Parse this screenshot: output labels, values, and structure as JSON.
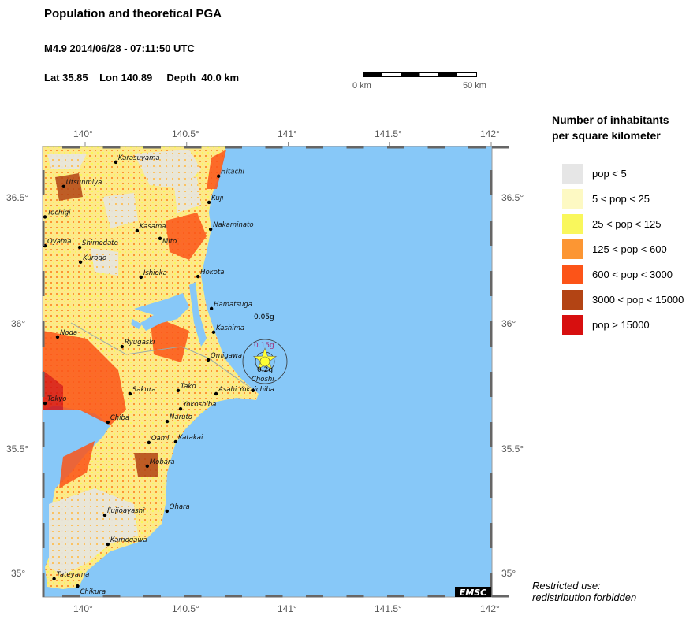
{
  "header": {
    "title": "Population and theoretical PGA",
    "event": "M4.9  2014/06/28 - 07:11:50 UTC",
    "location": "Lat 35.85    Lon 140.89     Depth  40.0 km"
  },
  "scale_bar": {
    "start_label": "0 km",
    "end_label": "50 km"
  },
  "map": {
    "lon_ticks": [
      "140°",
      "140.5°",
      "141°",
      "141.5°",
      "142°"
    ],
    "lat_ticks": [
      "36.5°",
      "36°",
      "35.5°",
      "35°"
    ],
    "colors": {
      "sea": "#87c8f8",
      "frame": "#666666"
    },
    "epicenter": {
      "lon": 140.89,
      "lat": 35.85,
      "icon": "star-icon",
      "color": "#ffff33"
    },
    "pga_labels": [
      "0.05g",
      "0.15g",
      "0.2g"
    ],
    "cities": [
      {
        "name": "Karasuyama",
        "lon": 140.151,
        "lat": 36.643
      },
      {
        "name": "Utsunmiya",
        "lon": 139.894,
        "lat": 36.546
      },
      {
        "name": "Hitachi",
        "lon": 140.657,
        "lat": 36.587
      },
      {
        "name": "Kuji",
        "lon": 140.61,
        "lat": 36.483
      },
      {
        "name": "Tochigi",
        "lon": 139.802,
        "lat": 36.425
      },
      {
        "name": "Nakaminato",
        "lon": 140.618,
        "lat": 36.376
      },
      {
        "name": "Kasama",
        "lon": 140.256,
        "lat": 36.37
      },
      {
        "name": "Mito",
        "lon": 140.369,
        "lat": 36.339
      },
      {
        "name": "Oyama",
        "lon": 139.802,
        "lat": 36.31
      },
      {
        "name": "Shimodate",
        "lon": 139.973,
        "lat": 36.304
      },
      {
        "name": "Kurogo",
        "lon": 139.977,
        "lat": 36.245
      },
      {
        "name": "Ishioka",
        "lon": 140.275,
        "lat": 36.185
      },
      {
        "name": "Hokota",
        "lon": 140.556,
        "lat": 36.188
      },
      {
        "name": "Hamatsuga",
        "lon": 140.622,
        "lat": 36.06
      },
      {
        "name": "Kashima",
        "lon": 140.633,
        "lat": 35.966
      },
      {
        "name": "Noda",
        "lon": 139.864,
        "lat": 35.947
      },
      {
        "name": "Ryugaski",
        "lon": 140.182,
        "lat": 35.909
      },
      {
        "name": "Omigawa",
        "lon": 140.606,
        "lat": 35.856
      },
      {
        "name": "Sakura",
        "lon": 140.221,
        "lat": 35.721
      },
      {
        "name": "Tako",
        "lon": 140.458,
        "lat": 35.734
      },
      {
        "name": "Asahi Yokaichiba",
        "lon": 140.645,
        "lat": 35.721
      },
      {
        "name": "Choshi",
        "lon": 140.827,
        "lat": 35.734
      },
      {
        "name": "Tokyo",
        "lon": 139.802,
        "lat": 35.683
      },
      {
        "name": "Yokoshiba",
        "lon": 140.47,
        "lat": 35.661
      },
      {
        "name": "Chiba",
        "lon": 140.112,
        "lat": 35.608
      },
      {
        "name": "Naruto",
        "lon": 140.404,
        "lat": 35.611
      },
      {
        "name": "Oami",
        "lon": 140.314,
        "lat": 35.527
      },
      {
        "name": "Katakai",
        "lon": 140.446,
        "lat": 35.53
      },
      {
        "name": "Mobara",
        "lon": 140.306,
        "lat": 35.433
      },
      {
        "name": "Ohara",
        "lon": 140.403,
        "lat": 35.254
      },
      {
        "name": "Fujioayashi",
        "lon": 140.097,
        "lat": 35.238
      },
      {
        "name": "Kamogawa",
        "lon": 140.112,
        "lat": 35.122
      },
      {
        "name": "Tateyama",
        "lon": 139.847,
        "lat": 34.985
      },
      {
        "name": "Chikura",
        "lon": 139.963,
        "lat": 34.956
      }
    ]
  },
  "legend": {
    "title_line1": "Number of inhabitants",
    "title_line2": "per square kilometer",
    "items": [
      {
        "label": "pop < 5",
        "color": "#e6e6e6"
      },
      {
        "label": "5 < pop < 25",
        "color": "#fdf9c3"
      },
      {
        "label": "25 < pop < 125",
        "color": "#f9f75c"
      },
      {
        "label": "125 < pop < 600",
        "color": "#fc9633"
      },
      {
        "label": "600 < pop < 3000",
        "color": "#fc5418"
      },
      {
        "label": "3000 < pop < 15000",
        "color": "#b34414"
      },
      {
        "label": "pop > 15000",
        "color": "#d70f0f"
      }
    ]
  },
  "logo": "EMSC",
  "notice": {
    "line1": "Restricted use:",
    "line2": "redistribution forbidden"
  }
}
